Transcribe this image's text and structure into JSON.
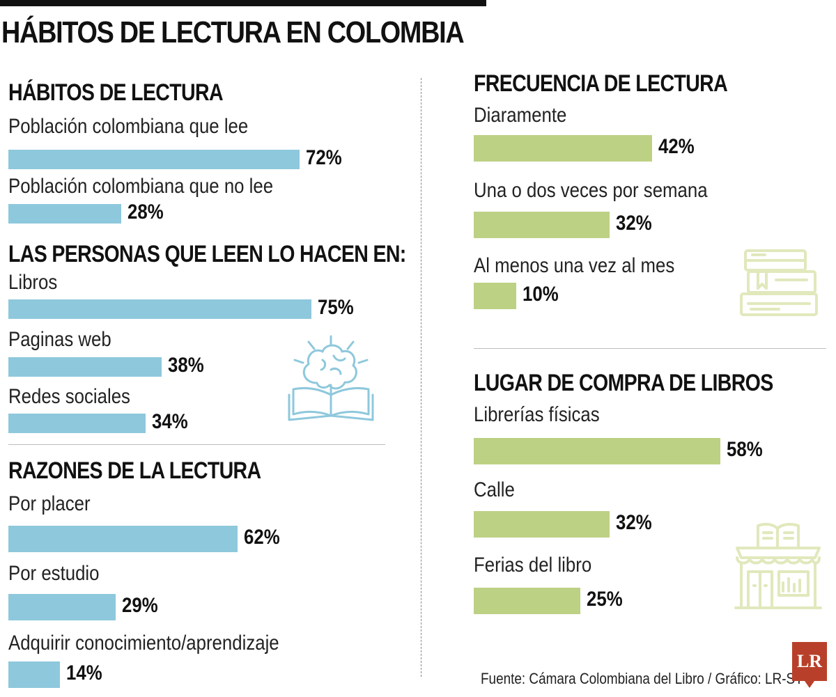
{
  "title": "HÁBITOS DE LECTURA EN COLOMBIA",
  "source": "Fuente: Cámara Colombiana del Libro / Gráfico: LR-ST",
  "logo_text": "LR",
  "colors": {
    "left_bars": "#8ec8dc",
    "right_bars": "#bcd184",
    "icons": "#e3e9c4"
  },
  "icons": [
    "brain-book-icon",
    "stacked-books-icon",
    "bookstore-icon"
  ],
  "chart_data": [
    {
      "type": "bar",
      "orientation": "horizontal",
      "title": "HÁBITOS DE LECTURA",
      "categories": [
        "Población colombiana que lee",
        "Población colombiana que no lee"
      ],
      "values": [
        72,
        28
      ],
      "value_labels": [
        "72%",
        "28%"
      ]
    },
    {
      "type": "bar",
      "orientation": "horizontal",
      "title": "LAS PERSONAS QUE LEEN LO HACEN EN:",
      "categories": [
        "Libros",
        "Paginas web",
        "Redes sociales"
      ],
      "values": [
        75,
        38,
        34
      ],
      "value_labels": [
        "75%",
        "38%",
        "34%"
      ]
    },
    {
      "type": "bar",
      "orientation": "horizontal",
      "title": "RAZONES DE LA LECTURA",
      "categories": [
        "Por placer",
        "Por estudio",
        "Adquirir conocimiento/aprendizaje"
      ],
      "values": [
        62,
        29,
        14
      ],
      "value_labels": [
        "62%",
        "29%",
        "14%"
      ]
    },
    {
      "type": "bar",
      "orientation": "horizontal",
      "title": "FRECUENCIA DE LECTURA",
      "categories": [
        "Diaramente",
        "Una o dos veces por semana",
        "Al menos una vez al mes"
      ],
      "values": [
        42,
        32,
        10
      ],
      "value_labels": [
        "42%",
        "32%",
        "10%"
      ]
    },
    {
      "type": "bar",
      "orientation": "horizontal",
      "title": "LUGAR DE COMPRA DE LIBROS",
      "categories": [
        "Librerías físicas",
        "Calle",
        "Ferias del libro"
      ],
      "values": [
        58,
        32,
        25
      ],
      "value_labels": [
        "58%",
        "32%",
        "25%"
      ]
    }
  ]
}
